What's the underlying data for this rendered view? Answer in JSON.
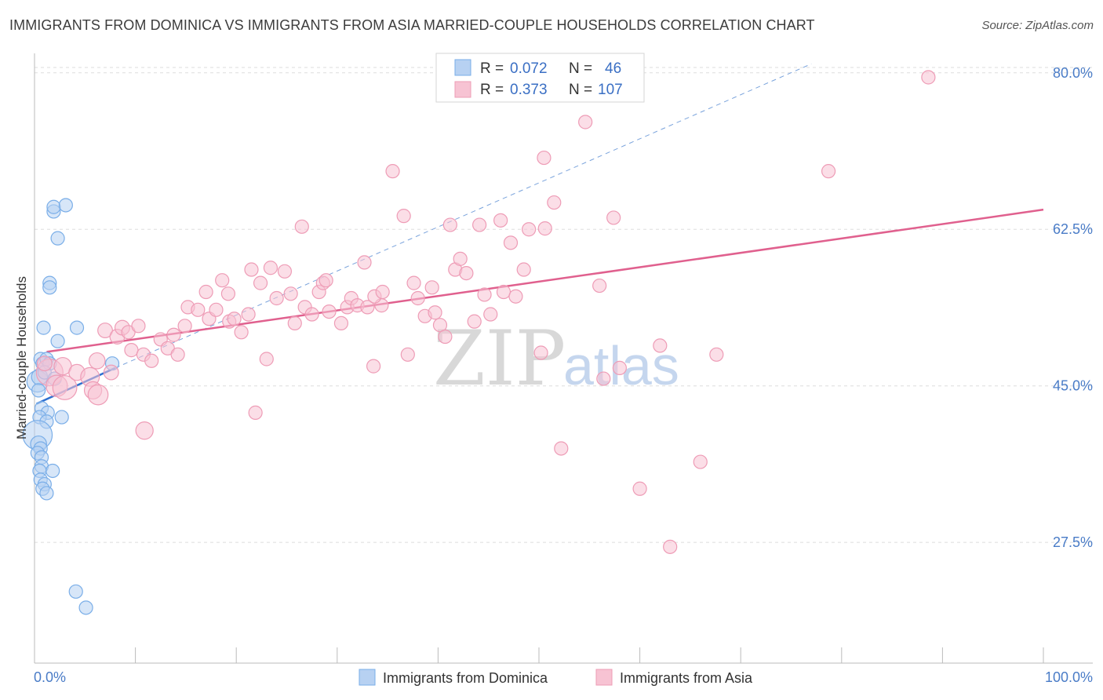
{
  "chart_data": {
    "type": "scatter",
    "title": "IMMIGRANTS FROM DOMINICA VS IMMIGRANTS FROM ASIA MARRIED-COUPLE HOUSEHOLDS CORRELATION CHART",
    "source": "Source: ZipAtlas.com",
    "xlabel": "",
    "ylabel": "Married-couple Households",
    "xlim": [
      0,
      100
    ],
    "ylim": [
      14,
      82
    ],
    "x_tick_labels": [
      "0.0%",
      "100.0%"
    ],
    "y_ticks": [
      {
        "value": 80.0,
        "label": "80.0%"
      },
      {
        "value": 62.5,
        "label": "62.5%"
      },
      {
        "value": 45.0,
        "label": "45.0%"
      },
      {
        "value": 27.5,
        "label": "27.5%"
      }
    ],
    "watermark": {
      "part1": "ZIP",
      "part2": "atlas"
    },
    "legend": {
      "rows": [
        {
          "r_label": "R =",
          "r_value": "0.072",
          "n_label": "N =",
          "n_value": "46"
        },
        {
          "r_label": "R =",
          "r_value": "0.373",
          "n_label": "N =",
          "n_value": "107"
        }
      ]
    },
    "series": [
      {
        "name": "Immigrants from Dominica",
        "color": "#7aaee8",
        "fill": "#b7d1f2",
        "line_color": "#2d6fd0",
        "trend": {
          "x": [
            0.2,
            8.0
          ],
          "y": [
            43.0,
            47.0
          ]
        },
        "dashed_trend": {
          "x": [
            8.0,
            77.0
          ],
          "y": [
            47.0,
            81.0
          ]
        },
        "points": [
          {
            "x": 0.3,
            "y": 45.5,
            "s": 1.6
          },
          {
            "x": 0.5,
            "y": 46.0,
            "s": 1.2
          },
          {
            "x": 0.6,
            "y": 48.0,
            "s": 1.0
          },
          {
            "x": 0.4,
            "y": 44.5,
            "s": 1.0
          },
          {
            "x": 0.8,
            "y": 47.5,
            "s": 1.0
          },
          {
            "x": 1.2,
            "y": 48.0,
            "s": 1.0
          },
          {
            "x": 1.5,
            "y": 47.5,
            "s": 1.0
          },
          {
            "x": 1.0,
            "y": 46.5,
            "s": 1.0
          },
          {
            "x": 0.7,
            "y": 42.5,
            "s": 1.0
          },
          {
            "x": 1.3,
            "y": 42.0,
            "s": 1.0
          },
          {
            "x": 0.5,
            "y": 41.5,
            "s": 1.0
          },
          {
            "x": 1.2,
            "y": 41.0,
            "s": 1.0
          },
          {
            "x": 0.3,
            "y": 39.5,
            "s": 2.2
          },
          {
            "x": 0.4,
            "y": 38.5,
            "s": 1.2
          },
          {
            "x": 0.6,
            "y": 38.0,
            "s": 1.0
          },
          {
            "x": 0.3,
            "y": 37.5,
            "s": 1.0
          },
          {
            "x": 0.7,
            "y": 37.0,
            "s": 1.0
          },
          {
            "x": 0.7,
            "y": 36.0,
            "s": 1.0
          },
          {
            "x": 0.5,
            "y": 35.5,
            "s": 1.0
          },
          {
            "x": 1.8,
            "y": 35.5,
            "s": 1.0
          },
          {
            "x": 0.6,
            "y": 34.5,
            "s": 1.0
          },
          {
            "x": 1.0,
            "y": 34.0,
            "s": 1.0
          },
          {
            "x": 0.8,
            "y": 33.5,
            "s": 1.0
          },
          {
            "x": 1.2,
            "y": 33.0,
            "s": 1.0
          },
          {
            "x": 0.9,
            "y": 51.5,
            "s": 1.0
          },
          {
            "x": 2.3,
            "y": 50.0,
            "s": 1.0
          },
          {
            "x": 4.2,
            "y": 51.5,
            "s": 1.0
          },
          {
            "x": 1.5,
            "y": 56.5,
            "s": 1.0
          },
          {
            "x": 1.5,
            "y": 56.0,
            "s": 1.0
          },
          {
            "x": 2.3,
            "y": 61.5,
            "s": 1.0
          },
          {
            "x": 1.9,
            "y": 64.5,
            "s": 1.0
          },
          {
            "x": 1.9,
            "y": 65.0,
            "s": 1.0
          },
          {
            "x": 3.1,
            "y": 65.2,
            "s": 1.0
          },
          {
            "x": 2.7,
            "y": 41.5,
            "s": 1.0
          },
          {
            "x": 7.7,
            "y": 47.5,
            "s": 1.0
          },
          {
            "x": 4.1,
            "y": 22.0,
            "s": 1.0
          },
          {
            "x": 5.1,
            "y": 20.2,
            "s": 1.0
          },
          {
            "x": 2.0,
            "y": 45.8,
            "s": 1.0
          }
        ]
      },
      {
        "name": "Immigrants from Asia",
        "color": "#ee9cb6",
        "fill": "#f7c3d3",
        "line_color": "#e0608e",
        "trend": {
          "x": [
            1.2,
            100.0
          ],
          "y": [
            48.8,
            64.7
          ]
        },
        "points": [
          {
            "x": 1.5,
            "y": 46.5,
            "s": 2.0
          },
          {
            "x": 2.2,
            "y": 45.0,
            "s": 1.6
          },
          {
            "x": 3.0,
            "y": 44.8,
            "s": 1.8
          },
          {
            "x": 2.8,
            "y": 47.2,
            "s": 1.3
          },
          {
            "x": 4.2,
            "y": 46.5,
            "s": 1.2
          },
          {
            "x": 5.5,
            "y": 46.0,
            "s": 1.4
          },
          {
            "x": 6.2,
            "y": 47.8,
            "s": 1.2
          },
          {
            "x": 7.6,
            "y": 46.5,
            "s": 1.1
          },
          {
            "x": 5.8,
            "y": 44.5,
            "s": 1.3
          },
          {
            "x": 1.0,
            "y": 47.5,
            "s": 1.1
          },
          {
            "x": 7.0,
            "y": 51.2,
            "s": 1.1
          },
          {
            "x": 8.2,
            "y": 50.5,
            "s": 1.1
          },
          {
            "x": 8.7,
            "y": 51.5,
            "s": 1.1
          },
          {
            "x": 9.3,
            "y": 51.0,
            "s": 1.0
          },
          {
            "x": 10.3,
            "y": 51.7,
            "s": 1.0
          },
          {
            "x": 9.6,
            "y": 49.0,
            "s": 1.0
          },
          {
            "x": 10.8,
            "y": 48.5,
            "s": 1.0
          },
          {
            "x": 11.6,
            "y": 47.8,
            "s": 1.0
          },
          {
            "x": 12.5,
            "y": 50.2,
            "s": 1.0
          },
          {
            "x": 13.2,
            "y": 49.2,
            "s": 1.0
          },
          {
            "x": 13.8,
            "y": 50.7,
            "s": 1.0
          },
          {
            "x": 14.2,
            "y": 48.5,
            "s": 1.0
          },
          {
            "x": 14.9,
            "y": 51.7,
            "s": 1.0
          },
          {
            "x": 15.2,
            "y": 53.8,
            "s": 1.0
          },
          {
            "x": 16.2,
            "y": 53.5,
            "s": 1.0
          },
          {
            "x": 17.0,
            "y": 55.5,
            "s": 1.0
          },
          {
            "x": 17.3,
            "y": 52.5,
            "s": 1.0
          },
          {
            "x": 18.0,
            "y": 53.5,
            "s": 1.0
          },
          {
            "x": 18.6,
            "y": 56.8,
            "s": 1.0
          },
          {
            "x": 19.2,
            "y": 55.3,
            "s": 1.0
          },
          {
            "x": 19.3,
            "y": 52.2,
            "s": 1.0
          },
          {
            "x": 19.8,
            "y": 52.5,
            "s": 1.0
          },
          {
            "x": 20.5,
            "y": 51.0,
            "s": 1.0
          },
          {
            "x": 21.2,
            "y": 53.0,
            "s": 1.0
          },
          {
            "x": 21.5,
            "y": 58.0,
            "s": 1.0
          },
          {
            "x": 22.4,
            "y": 56.5,
            "s": 1.0
          },
          {
            "x": 23.0,
            "y": 48.0,
            "s": 1.0
          },
          {
            "x": 23.4,
            "y": 58.2,
            "s": 1.0
          },
          {
            "x": 24.0,
            "y": 54.8,
            "s": 1.0
          },
          {
            "x": 24.8,
            "y": 57.8,
            "s": 1.0
          },
          {
            "x": 25.4,
            "y": 55.3,
            "s": 1.0
          },
          {
            "x": 25.8,
            "y": 52.0,
            "s": 1.0
          },
          {
            "x": 26.5,
            "y": 62.8,
            "s": 1.0
          },
          {
            "x": 26.8,
            "y": 53.8,
            "s": 1.0
          },
          {
            "x": 27.5,
            "y": 53.0,
            "s": 1.0
          },
          {
            "x": 28.2,
            "y": 55.5,
            "s": 1.0
          },
          {
            "x": 28.6,
            "y": 56.5,
            "s": 1.0
          },
          {
            "x": 28.9,
            "y": 56.8,
            "s": 1.0
          },
          {
            "x": 29.2,
            "y": 53.3,
            "s": 1.0
          },
          {
            "x": 30.4,
            "y": 52.0,
            "s": 1.0
          },
          {
            "x": 31.0,
            "y": 53.8,
            "s": 1.0
          },
          {
            "x": 31.4,
            "y": 54.8,
            "s": 1.0
          },
          {
            "x": 32.0,
            "y": 54.0,
            "s": 1.0
          },
          {
            "x": 32.7,
            "y": 58.8,
            "s": 1.0
          },
          {
            "x": 33.0,
            "y": 53.8,
            "s": 1.0
          },
          {
            "x": 33.6,
            "y": 47.2,
            "s": 1.0
          },
          {
            "x": 34.4,
            "y": 54.0,
            "s": 1.0
          },
          {
            "x": 33.7,
            "y": 55.0,
            "s": 1.0
          },
          {
            "x": 35.5,
            "y": 69.0,
            "s": 1.0
          },
          {
            "x": 34.5,
            "y": 55.5,
            "s": 1.0
          },
          {
            "x": 36.6,
            "y": 64.0,
            "s": 1.0
          },
          {
            "x": 37.0,
            "y": 48.5,
            "s": 1.0
          },
          {
            "x": 37.6,
            "y": 56.5,
            "s": 1.0
          },
          {
            "x": 38.0,
            "y": 54.8,
            "s": 1.0
          },
          {
            "x": 38.7,
            "y": 52.8,
            "s": 1.0
          },
          {
            "x": 39.4,
            "y": 56.0,
            "s": 1.0
          },
          {
            "x": 39.7,
            "y": 53.2,
            "s": 1.0
          },
          {
            "x": 40.2,
            "y": 51.8,
            "s": 1.0
          },
          {
            "x": 40.7,
            "y": 50.5,
            "s": 1.0
          },
          {
            "x": 41.2,
            "y": 63.0,
            "s": 1.0
          },
          {
            "x": 41.7,
            "y": 58.0,
            "s": 1.0
          },
          {
            "x": 42.2,
            "y": 59.2,
            "s": 1.0
          },
          {
            "x": 42.8,
            "y": 57.6,
            "s": 1.0
          },
          {
            "x": 43.6,
            "y": 52.2,
            "s": 1.0
          },
          {
            "x": 44.1,
            "y": 63.0,
            "s": 1.0
          },
          {
            "x": 44.6,
            "y": 55.2,
            "s": 1.0
          },
          {
            "x": 46.2,
            "y": 63.5,
            "s": 1.0
          },
          {
            "x": 46.5,
            "y": 55.5,
            "s": 1.0
          },
          {
            "x": 45.2,
            "y": 53.0,
            "s": 1.0
          },
          {
            "x": 47.2,
            "y": 61.0,
            "s": 1.0
          },
          {
            "x": 47.7,
            "y": 55.0,
            "s": 1.0
          },
          {
            "x": 48.5,
            "y": 58.0,
            "s": 1.0
          },
          {
            "x": 49.0,
            "y": 62.5,
            "s": 1.0
          },
          {
            "x": 50.5,
            "y": 70.5,
            "s": 1.0
          },
          {
            "x": 50.6,
            "y": 62.6,
            "s": 1.0
          },
          {
            "x": 51.5,
            "y": 65.5,
            "s": 1.0
          },
          {
            "x": 50.2,
            "y": 48.7,
            "s": 1.0
          },
          {
            "x": 52.2,
            "y": 38.0,
            "s": 1.0
          },
          {
            "x": 54.6,
            "y": 74.5,
            "s": 1.0
          },
          {
            "x": 56.4,
            "y": 45.8,
            "s": 1.0
          },
          {
            "x": 57.4,
            "y": 63.8,
            "s": 1.0
          },
          {
            "x": 58.0,
            "y": 47.0,
            "s": 1.0
          },
          {
            "x": 62.0,
            "y": 49.5,
            "s": 1.0
          },
          {
            "x": 63.0,
            "y": 27.0,
            "s": 1.0
          },
          {
            "x": 66.0,
            "y": 36.5,
            "s": 1.0
          },
          {
            "x": 60.0,
            "y": 33.5,
            "s": 1.0
          },
          {
            "x": 67.6,
            "y": 48.5,
            "s": 1.0
          },
          {
            "x": 78.7,
            "y": 69.0,
            "s": 1.0
          },
          {
            "x": 88.6,
            "y": 79.5,
            "s": 1.0
          },
          {
            "x": 56.0,
            "y": 56.2,
            "s": 1.0
          },
          {
            "x": 6.3,
            "y": 44.0,
            "s": 1.5
          },
          {
            "x": 10.9,
            "y": 40.0,
            "s": 1.3
          },
          {
            "x": 21.9,
            "y": 42.0,
            "s": 1.0
          }
        ]
      }
    ]
  }
}
